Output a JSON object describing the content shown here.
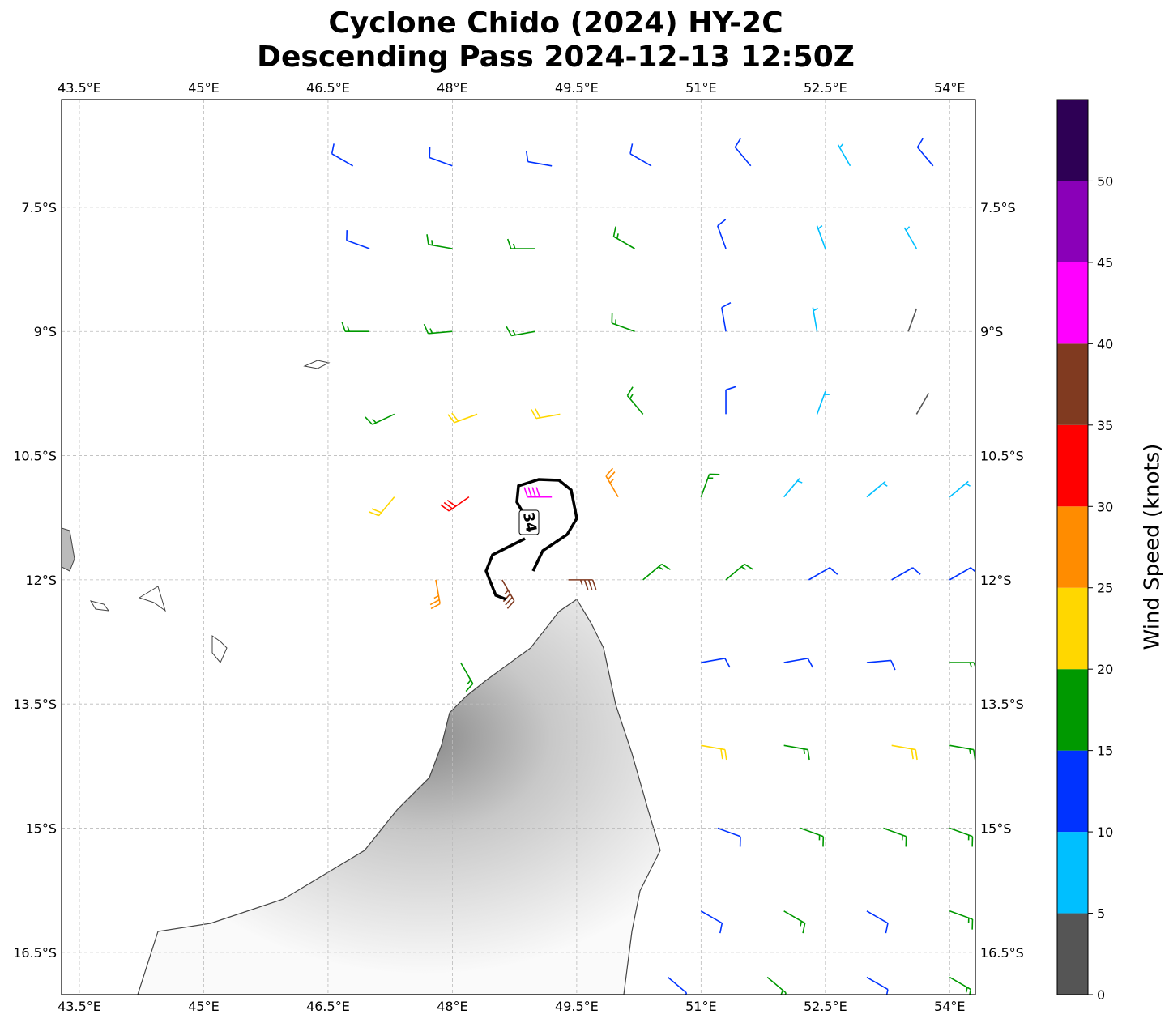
{
  "chart_data": {
    "type": "barbs",
    "title": "Cyclone Chido (2024) HY-2C",
    "subtitle": "Descending Pass 2024-12-13 12:50Z",
    "xlim": [
      43.285,
      54.31
    ],
    "ylim": [
      -17.01,
      -6.2
    ],
    "grid": true,
    "xticks": [
      {
        "value": 43.5,
        "label": "43.5°E"
      },
      {
        "value": 45,
        "label": "45°E"
      },
      {
        "value": 46.5,
        "label": "46.5°E"
      },
      {
        "value": 48,
        "label": "48°E"
      },
      {
        "value": 49.5,
        "label": "49.5°E"
      },
      {
        "value": 51,
        "label": "51°E"
      },
      {
        "value": 52.5,
        "label": "52.5°E"
      },
      {
        "value": 54,
        "label": "54°E"
      }
    ],
    "yticks": [
      {
        "value": -7.5,
        "label": "7.5°S"
      },
      {
        "value": -9,
        "label": "9°S"
      },
      {
        "value": -10.5,
        "label": "10.5°S"
      },
      {
        "value": -12,
        "label": "12°S"
      },
      {
        "value": -13.5,
        "label": "13.5°S"
      },
      {
        "value": -15,
        "label": "15°S"
      },
      {
        "value": -16.5,
        "label": "16.5°S"
      }
    ],
    "contour_label": "34",
    "colorbar": {
      "label": "Wind Speed (knots)",
      "lim": [
        0,
        55
      ],
      "ticks": [
        0,
        5,
        10,
        15,
        20,
        25,
        30,
        35,
        40,
        45,
        50
      ],
      "bounds": [
        0,
        5,
        10,
        15,
        20,
        25,
        30,
        35,
        40,
        45,
        50,
        55
      ],
      "colors": [
        "#555555",
        "#00bfff",
        "#0033ff",
        "#009900",
        "#ffd700",
        "#ff8c00",
        "#ff0000",
        "#803a20",
        "#ff00ff",
        "#8a00b8",
        "#2e0055"
      ]
    },
    "barbs": {
      "lon": [
        46.8,
        48,
        49.2,
        50.4,
        51.6,
        52.8,
        53.8,
        47,
        48,
        49,
        50.2,
        51.3,
        52.5,
        53.6,
        47,
        48,
        49,
        50.2,
        51.3,
        52.4,
        53.5,
        47.3,
        48.3,
        49.3,
        50.3,
        51.3,
        52.4,
        53.6,
        47.3,
        48.2,
        49.2,
        50,
        51,
        52,
        53,
        54,
        47.8,
        48.6,
        49.4,
        50.3,
        51.3,
        52.3,
        53.3,
        54,
        48.1,
        51,
        52,
        53,
        54,
        51,
        52,
        53.3,
        54,
        51.2,
        52.2,
        53.2,
        54,
        51,
        52,
        53,
        54,
        50.6,
        51.8,
        53,
        54
      ],
      "lat": [
        -7,
        -7,
        -7,
        -7,
        -7,
        -7,
        -7,
        -8,
        -8,
        -8,
        -8,
        -8,
        -8,
        -8,
        -9,
        -9,
        -9,
        -9,
        -9,
        -9,
        -9,
        -10,
        -10,
        -10,
        -10,
        -10,
        -10,
        -10,
        -11,
        -11,
        -11,
        -11,
        -11,
        -11,
        -11,
        -11,
        -12,
        -12,
        -12,
        -12,
        -12,
        -12,
        -12,
        -12,
        -13,
        -13,
        -13,
        -13,
        -13,
        -14,
        -14,
        -14,
        -14,
        -15,
        -15,
        -15,
        -15,
        -16,
        -16,
        -16,
        -16,
        -16.8,
        -16.8,
        -16.8,
        -16.8
      ],
      "speed": [
        12,
        13,
        12,
        11,
        11,
        9,
        11,
        13,
        17,
        18,
        15,
        12,
        8,
        7,
        17,
        18,
        19,
        16,
        13,
        8,
        4,
        18,
        22,
        24,
        17,
        12,
        7,
        3,
        23,
        32,
        42,
        27,
        18,
        8,
        9,
        8,
        25,
        38,
        35,
        18,
        15,
        14,
        12,
        12,
        18,
        14,
        14,
        14,
        16,
        20,
        17,
        22,
        18,
        13,
        17,
        16,
        17,
        13,
        15,
        14,
        17,
        13,
        17,
        13,
        17
      ],
      "direction": [
        300,
        290,
        280,
        300,
        320,
        330,
        320,
        290,
        280,
        270,
        300,
        340,
        340,
        330,
        270,
        265,
        260,
        290,
        350,
        350,
        20,
        245,
        250,
        260,
        320,
        0,
        20,
        30,
        220,
        235,
        270,
        330,
        20,
        40,
        50,
        50,
        170,
        150,
        90,
        50,
        50,
        60,
        60,
        60,
        150,
        80,
        80,
        85,
        90,
        100,
        100,
        100,
        100,
        110,
        110,
        110,
        110,
        120,
        120,
        120,
        110,
        130,
        130,
        120,
        120
      ]
    }
  }
}
